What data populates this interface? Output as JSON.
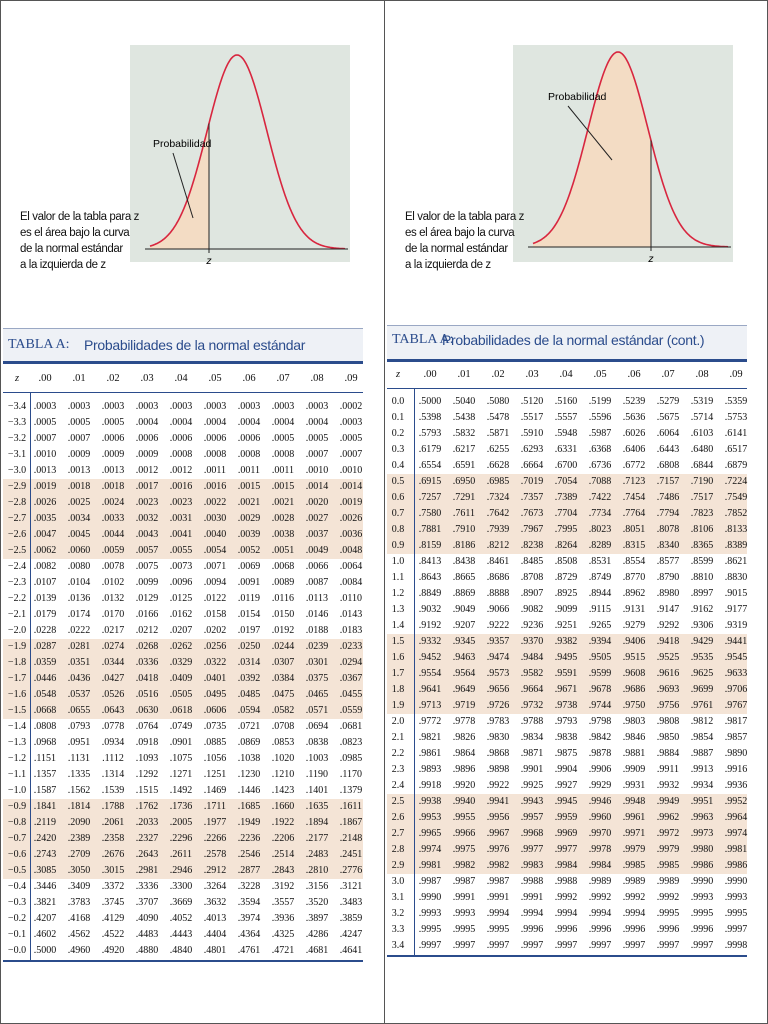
{
  "panels": [
    {
      "figure": {
        "label": "Probabilidad",
        "z_label": "z"
      },
      "caption": [
        "El valor de la tabla para z",
        "es el área bajo la curva",
        "de la normal estándar",
        "a la izquierda de z"
      ],
      "table": {
        "label": "TABLA A:",
        "title": "Probabilidades de la normal estándar",
        "header": [
          "z",
          ".00",
          ".01",
          ".02",
          ".03",
          ".04",
          ".05",
          ".06",
          ".07",
          ".08",
          ".09"
        ],
        "rows": [
          [
            "−3.4",
            ".0003",
            ".0003",
            ".0003",
            ".0003",
            ".0003",
            ".0003",
            ".0003",
            ".0003",
            ".0003",
            ".0002"
          ],
          [
            "−3.3",
            ".0005",
            ".0005",
            ".0005",
            ".0004",
            ".0004",
            ".0004",
            ".0004",
            ".0004",
            ".0004",
            ".0003"
          ],
          [
            "−3.2",
            ".0007",
            ".0007",
            ".0006",
            ".0006",
            ".0006",
            ".0006",
            ".0006",
            ".0005",
            ".0005",
            ".0005"
          ],
          [
            "−3.1",
            ".0010",
            ".0009",
            ".0009",
            ".0009",
            ".0008",
            ".0008",
            ".0008",
            ".0008",
            ".0007",
            ".0007"
          ],
          [
            "−3.0",
            ".0013",
            ".0013",
            ".0013",
            ".0012",
            ".0012",
            ".0011",
            ".0011",
            ".0011",
            ".0010",
            ".0010"
          ],
          [
            "−2.9",
            ".0019",
            ".0018",
            ".0018",
            ".0017",
            ".0016",
            ".0016",
            ".0015",
            ".0015",
            ".0014",
            ".0014"
          ],
          [
            "−2.8",
            ".0026",
            ".0025",
            ".0024",
            ".0023",
            ".0023",
            ".0022",
            ".0021",
            ".0021",
            ".0020",
            ".0019"
          ],
          [
            "−2.7",
            ".0035",
            ".0034",
            ".0033",
            ".0032",
            ".0031",
            ".0030",
            ".0029",
            ".0028",
            ".0027",
            ".0026"
          ],
          [
            "−2.6",
            ".0047",
            ".0045",
            ".0044",
            ".0043",
            ".0041",
            ".0040",
            ".0039",
            ".0038",
            ".0037",
            ".0036"
          ],
          [
            "−2.5",
            ".0062",
            ".0060",
            ".0059",
            ".0057",
            ".0055",
            ".0054",
            ".0052",
            ".0051",
            ".0049",
            ".0048"
          ],
          [
            "−2.4",
            ".0082",
            ".0080",
            ".0078",
            ".0075",
            ".0073",
            ".0071",
            ".0069",
            ".0068",
            ".0066",
            ".0064"
          ],
          [
            "−2.3",
            ".0107",
            ".0104",
            ".0102",
            ".0099",
            ".0096",
            ".0094",
            ".0091",
            ".0089",
            ".0087",
            ".0084"
          ],
          [
            "−2.2",
            ".0139",
            ".0136",
            ".0132",
            ".0129",
            ".0125",
            ".0122",
            ".0119",
            ".0116",
            ".0113",
            ".0110"
          ],
          [
            "−2.1",
            ".0179",
            ".0174",
            ".0170",
            ".0166",
            ".0162",
            ".0158",
            ".0154",
            ".0150",
            ".0146",
            ".0143"
          ],
          [
            "−2.0",
            ".0228",
            ".0222",
            ".0217",
            ".0212",
            ".0207",
            ".0202",
            ".0197",
            ".0192",
            ".0188",
            ".0183"
          ],
          [
            "−1.9",
            ".0287",
            ".0281",
            ".0274",
            ".0268",
            ".0262",
            ".0256",
            ".0250",
            ".0244",
            ".0239",
            ".0233"
          ],
          [
            "−1.8",
            ".0359",
            ".0351",
            ".0344",
            ".0336",
            ".0329",
            ".0322",
            ".0314",
            ".0307",
            ".0301",
            ".0294"
          ],
          [
            "−1.7",
            ".0446",
            ".0436",
            ".0427",
            ".0418",
            ".0409",
            ".0401",
            ".0392",
            ".0384",
            ".0375",
            ".0367"
          ],
          [
            "−1.6",
            ".0548",
            ".0537",
            ".0526",
            ".0516",
            ".0505",
            ".0495",
            ".0485",
            ".0475",
            ".0465",
            ".0455"
          ],
          [
            "−1.5",
            ".0668",
            ".0655",
            ".0643",
            ".0630",
            ".0618",
            ".0606",
            ".0594",
            ".0582",
            ".0571",
            ".0559"
          ],
          [
            "−1.4",
            ".0808",
            ".0793",
            ".0778",
            ".0764",
            ".0749",
            ".0735",
            ".0721",
            ".0708",
            ".0694",
            ".0681"
          ],
          [
            "−1.3",
            ".0968",
            ".0951",
            ".0934",
            ".0918",
            ".0901",
            ".0885",
            ".0869",
            ".0853",
            ".0838",
            ".0823"
          ],
          [
            "−1.2",
            ".1151",
            ".1131",
            ".1112",
            ".1093",
            ".1075",
            ".1056",
            ".1038",
            ".1020",
            ".1003",
            ".0985"
          ],
          [
            "−1.1",
            ".1357",
            ".1335",
            ".1314",
            ".1292",
            ".1271",
            ".1251",
            ".1230",
            ".1210",
            ".1190",
            ".1170"
          ],
          [
            "−1.0",
            ".1587",
            ".1562",
            ".1539",
            ".1515",
            ".1492",
            ".1469",
            ".1446",
            ".1423",
            ".1401",
            ".1379"
          ],
          [
            "−0.9",
            ".1841",
            ".1814",
            ".1788",
            ".1762",
            ".1736",
            ".1711",
            ".1685",
            ".1660",
            ".1635",
            ".1611"
          ],
          [
            "−0.8",
            ".2119",
            ".2090",
            ".2061",
            ".2033",
            ".2005",
            ".1977",
            ".1949",
            ".1922",
            ".1894",
            ".1867"
          ],
          [
            "−0.7",
            ".2420",
            ".2389",
            ".2358",
            ".2327",
            ".2296",
            ".2266",
            ".2236",
            ".2206",
            ".2177",
            ".2148"
          ],
          [
            "−0.6",
            ".2743",
            ".2709",
            ".2676",
            ".2643",
            ".2611",
            ".2578",
            ".2546",
            ".2514",
            ".2483",
            ".2451"
          ],
          [
            "−0.5",
            ".3085",
            ".3050",
            ".3015",
            ".2981",
            ".2946",
            ".2912",
            ".2877",
            ".2843",
            ".2810",
            ".2776"
          ],
          [
            "−0.4",
            ".3446",
            ".3409",
            ".3372",
            ".3336",
            ".3300",
            ".3264",
            ".3228",
            ".3192",
            ".3156",
            ".3121"
          ],
          [
            "−0.3",
            ".3821",
            ".3783",
            ".3745",
            ".3707",
            ".3669",
            ".3632",
            ".3594",
            ".3557",
            ".3520",
            ".3483"
          ],
          [
            "−0.2",
            ".4207",
            ".4168",
            ".4129",
            ".4090",
            ".4052",
            ".4013",
            ".3974",
            ".3936",
            ".3897",
            ".3859"
          ],
          [
            "−0.1",
            ".4602",
            ".4562",
            ".4522",
            ".4483",
            ".4443",
            ".4404",
            ".4364",
            ".4325",
            ".4286",
            ".4247"
          ],
          [
            "−0.0",
            ".5000",
            ".4960",
            ".4920",
            ".4880",
            ".4840",
            ".4801",
            ".4761",
            ".4721",
            ".4681",
            ".4641"
          ]
        ]
      }
    },
    {
      "figure": {
        "label": "Probabilidad",
        "z_label": "z"
      },
      "caption": [
        "El valor de la tabla para z",
        "es el área bajo la curva",
        "de la normal estándar",
        "a la izquierda de z"
      ],
      "table": {
        "label": "TABLA A:",
        "title": "Probabilidades de la normal estándar (cont.)",
        "header": [
          "z",
          ".00",
          ".01",
          ".02",
          ".03",
          ".04",
          ".05",
          ".06",
          ".07",
          ".08",
          ".09"
        ],
        "rows": [
          [
            "0.0",
            ".5000",
            ".5040",
            ".5080",
            ".5120",
            ".5160",
            ".5199",
            ".5239",
            ".5279",
            ".5319",
            ".5359"
          ],
          [
            "0.1",
            ".5398",
            ".5438",
            ".5478",
            ".5517",
            ".5557",
            ".5596",
            ".5636",
            ".5675",
            ".5714",
            ".5753"
          ],
          [
            "0.2",
            ".5793",
            ".5832",
            ".5871",
            ".5910",
            ".5948",
            ".5987",
            ".6026",
            ".6064",
            ".6103",
            ".6141"
          ],
          [
            "0.3",
            ".6179",
            ".6217",
            ".6255",
            ".6293",
            ".6331",
            ".6368",
            ".6406",
            ".6443",
            ".6480",
            ".6517"
          ],
          [
            "0.4",
            ".6554",
            ".6591",
            ".6628",
            ".6664",
            ".6700",
            ".6736",
            ".6772",
            ".6808",
            ".6844",
            ".6879"
          ],
          [
            "0.5",
            ".6915",
            ".6950",
            ".6985",
            ".7019",
            ".7054",
            ".7088",
            ".7123",
            ".7157",
            ".7190",
            ".7224"
          ],
          [
            "0.6",
            ".7257",
            ".7291",
            ".7324",
            ".7357",
            ".7389",
            ".7422",
            ".7454",
            ".7486",
            ".7517",
            ".7549"
          ],
          [
            "0.7",
            ".7580",
            ".7611",
            ".7642",
            ".7673",
            ".7704",
            ".7734",
            ".7764",
            ".7794",
            ".7823",
            ".7852"
          ],
          [
            "0.8",
            ".7881",
            ".7910",
            ".7939",
            ".7967",
            ".7995",
            ".8023",
            ".8051",
            ".8078",
            ".8106",
            ".8133"
          ],
          [
            "0.9",
            ".8159",
            ".8186",
            ".8212",
            ".8238",
            ".8264",
            ".8289",
            ".8315",
            ".8340",
            ".8365",
            ".8389"
          ],
          [
            "1.0",
            ".8413",
            ".8438",
            ".8461",
            ".8485",
            ".8508",
            ".8531",
            ".8554",
            ".8577",
            ".8599",
            ".8621"
          ],
          [
            "1.1",
            ".8643",
            ".8665",
            ".8686",
            ".8708",
            ".8729",
            ".8749",
            ".8770",
            ".8790",
            ".8810",
            ".8830"
          ],
          [
            "1.2",
            ".8849",
            ".8869",
            ".8888",
            ".8907",
            ".8925",
            ".8944",
            ".8962",
            ".8980",
            ".8997",
            ".9015"
          ],
          [
            "1.3",
            ".9032",
            ".9049",
            ".9066",
            ".9082",
            ".9099",
            ".9115",
            ".9131",
            ".9147",
            ".9162",
            ".9177"
          ],
          [
            "1.4",
            ".9192",
            ".9207",
            ".9222",
            ".9236",
            ".9251",
            ".9265",
            ".9279",
            ".9292",
            ".9306",
            ".9319"
          ],
          [
            "1.5",
            ".9332",
            ".9345",
            ".9357",
            ".9370",
            ".9382",
            ".9394",
            ".9406",
            ".9418",
            ".9429",
            ".9441"
          ],
          [
            "1.6",
            ".9452",
            ".9463",
            ".9474",
            ".9484",
            ".9495",
            ".9505",
            ".9515",
            ".9525",
            ".9535",
            ".9545"
          ],
          [
            "1.7",
            ".9554",
            ".9564",
            ".9573",
            ".9582",
            ".9591",
            ".9599",
            ".9608",
            ".9616",
            ".9625",
            ".9633"
          ],
          [
            "1.8",
            ".9641",
            ".9649",
            ".9656",
            ".9664",
            ".9671",
            ".9678",
            ".9686",
            ".9693",
            ".9699",
            ".9706"
          ],
          [
            "1.9",
            ".9713",
            ".9719",
            ".9726",
            ".9732",
            ".9738",
            ".9744",
            ".9750",
            ".9756",
            ".9761",
            ".9767"
          ],
          [
            "2.0",
            ".9772",
            ".9778",
            ".9783",
            ".9788",
            ".9793",
            ".9798",
            ".9803",
            ".9808",
            ".9812",
            ".9817"
          ],
          [
            "2.1",
            ".9821",
            ".9826",
            ".9830",
            ".9834",
            ".9838",
            ".9842",
            ".9846",
            ".9850",
            ".9854",
            ".9857"
          ],
          [
            "2.2",
            ".9861",
            ".9864",
            ".9868",
            ".9871",
            ".9875",
            ".9878",
            ".9881",
            ".9884",
            ".9887",
            ".9890"
          ],
          [
            "2.3",
            ".9893",
            ".9896",
            ".9898",
            ".9901",
            ".9904",
            ".9906",
            ".9909",
            ".9911",
            ".9913",
            ".9916"
          ],
          [
            "2.4",
            ".9918",
            ".9920",
            ".9922",
            ".9925",
            ".9927",
            ".9929",
            ".9931",
            ".9932",
            ".9934",
            ".9936"
          ],
          [
            "2.5",
            ".9938",
            ".9940",
            ".9941",
            ".9943",
            ".9945",
            ".9946",
            ".9948",
            ".9949",
            ".9951",
            ".9952"
          ],
          [
            "2.6",
            ".9953",
            ".9955",
            ".9956",
            ".9957",
            ".9959",
            ".9960",
            ".9961",
            ".9962",
            ".9963",
            ".9964"
          ],
          [
            "2.7",
            ".9965",
            ".9966",
            ".9967",
            ".9968",
            ".9969",
            ".9970",
            ".9971",
            ".9972",
            ".9973",
            ".9974"
          ],
          [
            "2.8",
            ".9974",
            ".9975",
            ".9976",
            ".9977",
            ".9977",
            ".9978",
            ".9979",
            ".9979",
            ".9980",
            ".9981"
          ],
          [
            "2.9",
            ".9981",
            ".9982",
            ".9982",
            ".9983",
            ".9984",
            ".9984",
            ".9985",
            ".9985",
            ".9986",
            ".9986"
          ],
          [
            "3.0",
            ".9987",
            ".9987",
            ".9987",
            ".9988",
            ".9988",
            ".9989",
            ".9989",
            ".9989",
            ".9990",
            ".9990"
          ],
          [
            "3.1",
            ".9990",
            ".9991",
            ".9991",
            ".9991",
            ".9992",
            ".9992",
            ".9992",
            ".9992",
            ".9993",
            ".9993"
          ],
          [
            "3.2",
            ".9993",
            ".9993",
            ".9994",
            ".9994",
            ".9994",
            ".9994",
            ".9994",
            ".9995",
            ".9995",
            ".9995"
          ],
          [
            "3.3",
            ".9995",
            ".9995",
            ".9995",
            ".9996",
            ".9996",
            ".9996",
            ".9996",
            ".9996",
            ".9996",
            ".9997"
          ],
          [
            "3.4",
            ".9997",
            ".9997",
            ".9997",
            ".9997",
            ".9997",
            ".9997",
            ".9997",
            ".9997",
            ".9997",
            ".9998"
          ]
        ]
      }
    }
  ]
}
